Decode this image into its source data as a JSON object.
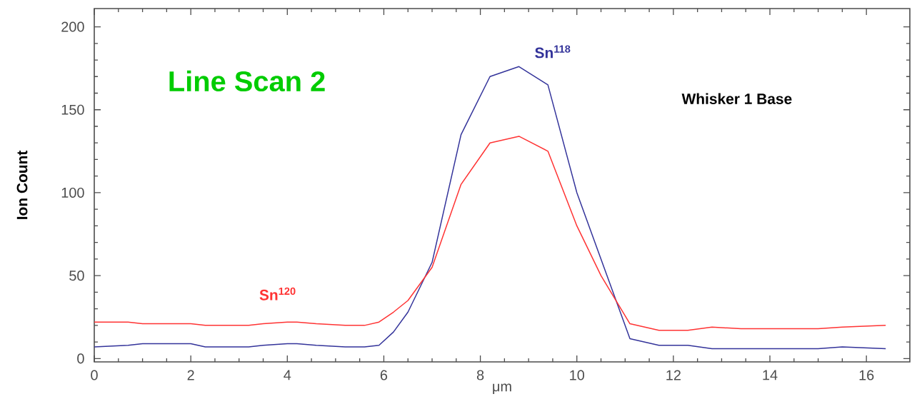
{
  "chart_data": {
    "type": "line",
    "title": "Line Scan 2",
    "xlabel": "μm",
    "ylabel": "Ion Count",
    "annotations": [
      "Whisker 1 Base"
    ],
    "xlim": [
      0,
      16.9
    ],
    "ylim": [
      -2,
      211
    ],
    "xticks": [
      0,
      2,
      4,
      6,
      8,
      10,
      12,
      14,
      16
    ],
    "yticks": [
      0,
      50,
      100,
      150,
      200
    ],
    "grid": false,
    "legend": false,
    "marker": "none",
    "line_style": "solid",
    "series": [
      {
        "name": "Sn$^{118}$",
        "color": "#33339a",
        "x": [
          0,
          0.7,
          1,
          2,
          2.3,
          3.2,
          3.5,
          4,
          4.2,
          4.6,
          5.2,
          5.6,
          5.9,
          6.2,
          6.5,
          7.0,
          7.6,
          8.2,
          8.8,
          9.4,
          10.0,
          10.5,
          11.1,
          11.7,
          12.3,
          12.8,
          15.0,
          15.5,
          16.4
        ],
        "values": [
          7,
          8,
          9,
          9,
          7,
          7,
          8,
          9,
          9,
          8,
          7,
          7,
          8,
          16,
          28,
          58,
          135,
          170,
          176,
          165,
          100,
          60,
          12,
          8,
          8,
          6,
          6,
          7,
          6
        ]
      },
      {
        "name": "Sn$^{120}$",
        "color": "#ff3333",
        "x": [
          0,
          0.7,
          1,
          2,
          2.3,
          3.2,
          3.5,
          4,
          4.2,
          4.6,
          5.2,
          5.6,
          5.9,
          6.2,
          6.5,
          7.0,
          7.6,
          8.2,
          8.8,
          9.4,
          10.0,
          10.5,
          11.1,
          11.7,
          12.3,
          12.8,
          13.4,
          15.0,
          15.5,
          16.4
        ],
        "values": [
          22,
          22,
          21,
          21,
          20,
          20,
          21,
          22,
          22,
          21,
          20,
          20,
          22,
          28,
          35,
          55,
          105,
          130,
          134,
          125,
          80,
          50,
          21,
          17,
          17,
          19,
          18,
          18,
          19,
          20
        ]
      }
    ]
  }
}
